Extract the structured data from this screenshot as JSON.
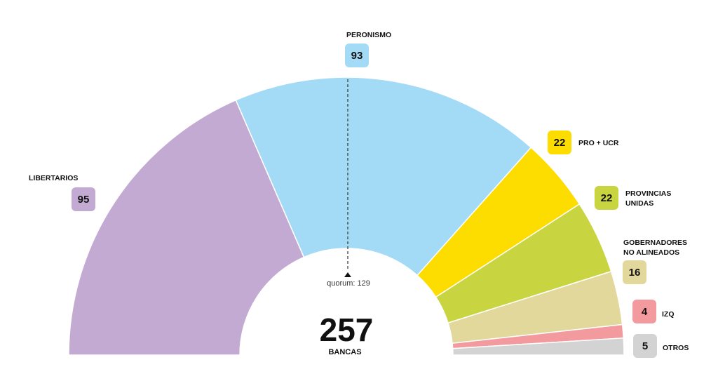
{
  "chart_data": {
    "type": "pie",
    "variant": "half-donut",
    "total": 257,
    "total_label": "BANCAS",
    "quorum_label": "quorum: 129",
    "quorum": 129,
    "series": [
      {
        "name": "LIBERTARIOS",
        "value": 95,
        "color": "#c3aad3"
      },
      {
        "name": "PERONISMO",
        "value": 93,
        "color": "#a3daf5"
      },
      {
        "name": "PRO + UCR",
        "value": 22,
        "color": "#fddc00"
      },
      {
        "name": "PROVINCIAS UNIDAS",
        "value": 22,
        "color": "#c8d540"
      },
      {
        "name": "GOBERNADORES NO ALINEADOS",
        "value": 16,
        "color": "#e2d89c"
      },
      {
        "name": "IZQ",
        "value": 4,
        "color": "#f29a9e"
      },
      {
        "name": "OTROS",
        "value": 5,
        "color": "#d3d3d3"
      }
    ]
  },
  "labels": {
    "libertarios": "LIBERTARIOS",
    "peronismo": "PERONISMO",
    "pro_ucr": "PRO + UCR",
    "provincias_line1": "PROVINCIAS",
    "provincias_line2": "UNIDAS",
    "gobernadores_line1": "GOBERNADORES",
    "gobernadores_line2": "NO ALINEADOS",
    "izq": "IZQ",
    "otros": "OTROS"
  },
  "values": {
    "libertarios": "95",
    "peronismo": "93",
    "pro_ucr": "22",
    "provincias": "22",
    "gobernadores": "16",
    "izq": "4",
    "otros": "5"
  },
  "center": {
    "total": "257",
    "unit": "BANCAS",
    "quorum": "quorum: 129"
  }
}
